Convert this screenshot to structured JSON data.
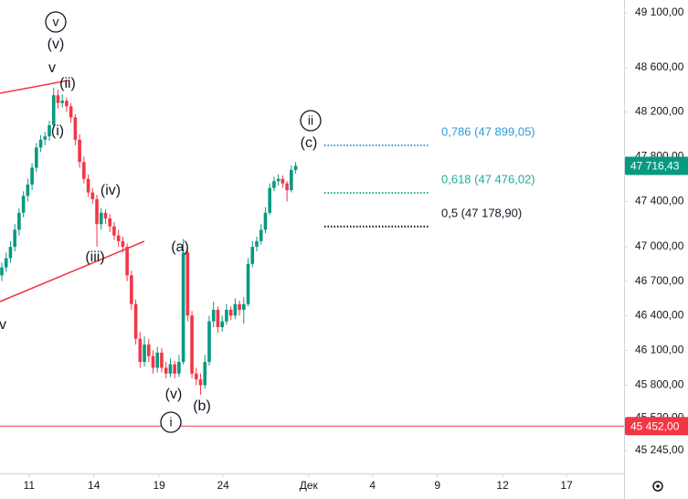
{
  "chart_data": {
    "type": "candlestick",
    "log_scale": true,
    "grid": false,
    "up_color": "#089981",
    "down_color": "#f23645",
    "xlim": [
      -0.42,
      144
    ],
    "ylim": [
      45052,
      49218
    ],
    "xticks": [
      {
        "value": 6.3,
        "label": "11"
      },
      {
        "value": 21.3,
        "label": "14"
      },
      {
        "value": 36.4,
        "label": "19"
      },
      {
        "value": 51.2,
        "label": "24"
      },
      {
        "value": 71,
        "label": "Дек"
      },
      {
        "value": 85.8,
        "label": "4"
      },
      {
        "value": 100.8,
        "label": "9"
      },
      {
        "value": 115.9,
        "label": "12"
      },
      {
        "value": 130.7,
        "label": "17"
      }
    ],
    "yticks": [
      {
        "value": 49100,
        "label": "49 100,00"
      },
      {
        "value": 48600,
        "label": "48 600,00"
      },
      {
        "value": 48200,
        "label": "48 200,00"
      },
      {
        "value": 47800,
        "label": "47 800,00"
      },
      {
        "value": 47400,
        "label": "47 400,00"
      },
      {
        "value": 47000,
        "label": "47 000,00"
      },
      {
        "value": 46700,
        "label": "46 700,00"
      },
      {
        "value": 46400,
        "label": "46 400,00"
      },
      {
        "value": 46100,
        "label": "46 100,00"
      },
      {
        "value": 45800,
        "label": "45 800,00"
      },
      {
        "value": 45520,
        "label": "45 520,00"
      },
      {
        "value": 45245,
        "label": "45 245,00"
      }
    ],
    "candles": [
      [
        46750,
        46860,
        46700,
        46820
      ],
      [
        46820,
        46950,
        46780,
        46900
      ],
      [
        46900,
        47050,
        46860,
        47000
      ],
      [
        47000,
        47200,
        46960,
        47150
      ],
      [
        47150,
        47340,
        47100,
        47300
      ],
      [
        47300,
        47490,
        47260,
        47450
      ],
      [
        47450,
        47600,
        47400,
        47550
      ],
      [
        47550,
        47740,
        47500,
        47700
      ],
      [
        47700,
        47920,
        47660,
        47880
      ],
      [
        47880,
        47990,
        47840,
        47950
      ],
      [
        47950,
        48020,
        47900,
        47980
      ],
      [
        47980,
        48120,
        47940,
        48080
      ],
      [
        48080,
        48420,
        48050,
        48350
      ],
      [
        48350,
        48400,
        48230,
        48280
      ],
      [
        48280,
        48360,
        48240,
        48300
      ],
      [
        48300,
        48330,
        48200,
        48250
      ],
      [
        48250,
        48280,
        48100,
        48150
      ],
      [
        48150,
        48180,
        47900,
        47950
      ],
      [
        47950,
        48000,
        47700,
        47750
      ],
      [
        47750,
        47800,
        47560,
        47600
      ],
      [
        47600,
        47640,
        47440,
        47480
      ],
      [
        47480,
        47520,
        47380,
        47420
      ],
      [
        47420,
        47460,
        47000,
        47200
      ],
      [
        47200,
        47340,
        47150,
        47300
      ],
      [
        47300,
        47330,
        47200,
        47250
      ],
      [
        47250,
        47290,
        47130,
        47180
      ],
      [
        47180,
        47220,
        47060,
        47100
      ],
      [
        47100,
        47150,
        47000,
        47050
      ],
      [
        47050,
        47090,
        46950,
        47000
      ],
      [
        47000,
        47030,
        46700,
        46750
      ],
      [
        46750,
        46790,
        46450,
        46500
      ],
      [
        46500,
        46540,
        46150,
        46200
      ],
      [
        46200,
        46260,
        45950,
        46000
      ],
      [
        46000,
        46220,
        45960,
        46150
      ],
      [
        46150,
        46200,
        46000,
        46050
      ],
      [
        46050,
        46100,
        45900,
        45950
      ],
      [
        45950,
        46130,
        45910,
        46080
      ],
      [
        46080,
        46120,
        45910,
        45950
      ],
      [
        45950,
        46000,
        45860,
        45900
      ],
      [
        45900,
        46030,
        45870,
        45980
      ],
      [
        45980,
        46010,
        45860,
        45900
      ],
      [
        45900,
        46060,
        45870,
        46000
      ],
      [
        46000,
        47070,
        45980,
        46950
      ],
      [
        46950,
        46980,
        46350,
        46400
      ],
      [
        46400,
        46440,
        45860,
        45900
      ],
      [
        45900,
        45950,
        45800,
        45850
      ],
      [
        45850,
        45900,
        45720,
        45800
      ],
      [
        45800,
        46060,
        45770,
        46000
      ],
      [
        46000,
        46400,
        45970,
        46350
      ],
      [
        46350,
        46520,
        46300,
        46450
      ],
      [
        46450,
        46480,
        46250,
        46300
      ],
      [
        46300,
        46400,
        46260,
        46350
      ],
      [
        46350,
        46500,
        46320,
        46450
      ],
      [
        46450,
        46480,
        46360,
        46400
      ],
      [
        46400,
        46550,
        46370,
        46500
      ],
      [
        46500,
        46530,
        46400,
        46450
      ],
      [
        46450,
        46560,
        46330,
        46500
      ],
      [
        46500,
        46900,
        46480,
        46850
      ],
      [
        46850,
        47050,
        46820,
        47000
      ],
      [
        47000,
        47090,
        46960,
        47050
      ],
      [
        47050,
        47200,
        47020,
        47150
      ],
      [
        47150,
        47350,
        47120,
        47300
      ],
      [
        47300,
        47560,
        47280,
        47520
      ],
      [
        47520,
        47620,
        47490,
        47580
      ],
      [
        47580,
        47640,
        47540,
        47600
      ],
      [
        47600,
        47630,
        47520,
        47560
      ],
      [
        47560,
        47580,
        47400,
        47500
      ],
      [
        47500,
        47720,
        47480,
        47680
      ],
      [
        47680,
        47750,
        47650,
        47716.43
      ]
    ],
    "last_price": {
      "value": 47716.43,
      "label": "47 716,43"
    },
    "horizontal_line": {
      "value": 45452,
      "label": "45 452,00",
      "color": "#f23645"
    },
    "fib_levels": [
      {
        "value": 47899.05,
        "label": "0,786 (47 899,05)",
        "color": "#2f9bd6"
      },
      {
        "value": 47476.02,
        "label": "0,618 (47 476,02)",
        "color": "#22ab94"
      },
      {
        "value": 47178.9,
        "label": "0,5 (47 178,90)",
        "color": "#131722"
      }
    ],
    "wave_labels": [
      {
        "text": "v",
        "circled": true
      },
      {
        "text": "(v)",
        "circled": false
      },
      {
        "text": "v",
        "circled": false
      },
      {
        "text": "(ii)",
        "circled": false
      },
      {
        "text": "(i)",
        "circled": false
      },
      {
        "text": "(iv)",
        "circled": false
      },
      {
        "text": "(iii)",
        "circled": false
      },
      {
        "text": "(a)",
        "circled": false
      },
      {
        "text": "(v)",
        "circled": false
      },
      {
        "text": "(b)",
        "circled": false
      },
      {
        "text": "i",
        "circled": true
      },
      {
        "text": "ii",
        "circled": true
      },
      {
        "text": "(c)",
        "circled": false
      },
      {
        "text": "v",
        "circled": false
      }
    ]
  }
}
